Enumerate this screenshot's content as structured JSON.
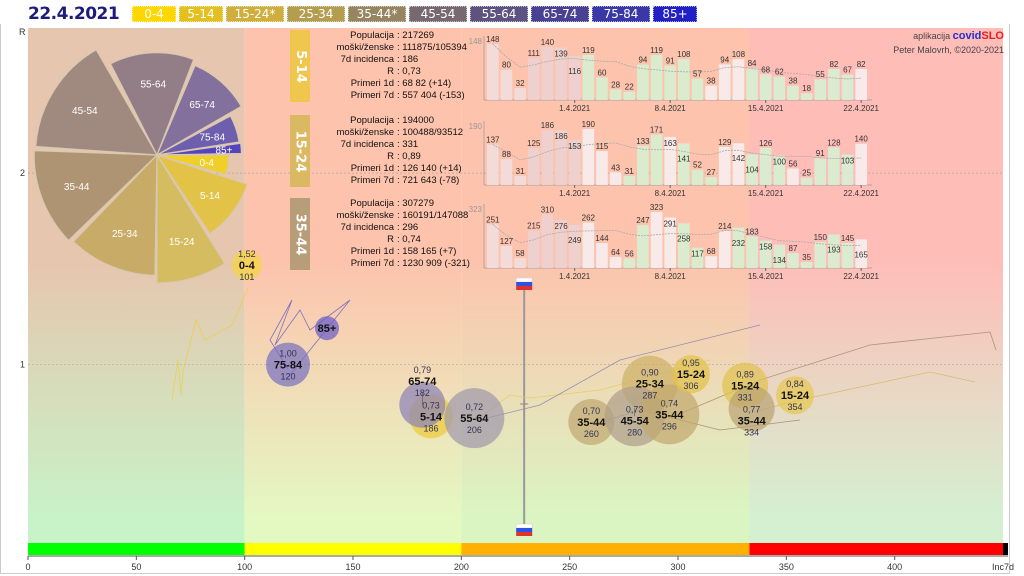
{
  "header": {
    "date": "22.4.2021"
  },
  "legend": [
    {
      "label": "0-4",
      "color": "#ffd700"
    },
    {
      "label": "5-14",
      "color": "#e3bf1f"
    },
    {
      "label": "15-24*",
      "color": "#cfae3e"
    },
    {
      "label": "25-34",
      "color": "#b59d4f"
    },
    {
      "label": "35-44*",
      "color": "#978460"
    },
    {
      "label": "45-54",
      "color": "#786970"
    },
    {
      "label": "55-64",
      "color": "#5c5380"
    },
    {
      "label": "65-74",
      "color": "#4a4192"
    },
    {
      "label": "75-84",
      "color": "#3a38a6"
    },
    {
      "label": "85+",
      "color": "#2020c4"
    }
  ],
  "credits": {
    "prefix": "aplikacija",
    "brand_a": "covid",
    "brand_b": "SLO",
    "author": "Peter Malovrh, ©2020-2021"
  },
  "panels": [
    {
      "group": "5-14",
      "color": "#efc64e",
      "rows": [
        {
          "k": "Populacija",
          "v": "217269"
        },
        {
          "k": "moški/ženske",
          "v": "111875/105394"
        },
        {
          "k": "7d incidenca",
          "v": "186"
        },
        {
          "k": "R",
          "v": "0,73"
        },
        {
          "k": "Primeri 1d",
          "v": "68 82 (+14)"
        },
        {
          "k": "Primeri 7d",
          "v": "557 404 (-153)"
        }
      ],
      "max_label": "148",
      "values": [
        148,
        80,
        32,
        111,
        140,
        139,
        116,
        119,
        60,
        28,
        22,
        94,
        119,
        91,
        108,
        57,
        38,
        94,
        108,
        84,
        68,
        62,
        38,
        18,
        55,
        82,
        67,
        82
      ]
    },
    {
      "group": "15-24",
      "color": "#dbb862",
      "rows": [
        {
          "k": "Populacija",
          "v": "194000"
        },
        {
          "k": "moški/ženske",
          "v": "100488/93512"
        },
        {
          "k": "7d incidenca",
          "v": "331"
        },
        {
          "k": "R",
          "v": "0,89"
        },
        {
          "k": "Primeri 1d",
          "v": "126 140 (+14)"
        },
        {
          "k": "Primeri 7d",
          "v": "721 643 (-78)"
        }
      ],
      "max_label": "190",
      "values": [
        137,
        88,
        31,
        125,
        186,
        186,
        153,
        190,
        115,
        43,
        31,
        133,
        171,
        163,
        141,
        52,
        27,
        129,
        142,
        104,
        126,
        100,
        56,
        25,
        91,
        128,
        103,
        140
      ]
    },
    {
      "group": "35-44",
      "color": "#b89e78",
      "rows": [
        {
          "k": "Populacija",
          "v": "307279"
        },
        {
          "k": "moški/ženske",
          "v": "160191/147088"
        },
        {
          "k": "7d incidenca",
          "v": "296"
        },
        {
          "k": "R",
          "v": "0,74"
        },
        {
          "k": "Primeri 1d",
          "v": "158 165 (+7)"
        },
        {
          "k": "Primeri 7d",
          "v": "1230 909 (-321)"
        }
      ],
      "max_label": "323",
      "values": [
        251,
        127,
        58,
        215,
        310,
        276,
        249,
        262,
        144,
        64,
        56,
        247,
        323,
        291,
        258,
        117,
        68,
        214,
        232,
        183,
        158,
        134,
        87,
        35,
        150,
        193,
        145,
        165
      ]
    }
  ],
  "date_ticks": [
    {
      "label": "1.4.2021",
      "index": 6
    },
    {
      "label": "8.4.2021",
      "index": 13
    },
    {
      "label": "15.4.2021",
      "index": 20
    },
    {
      "label": "22.4.2021",
      "index": 27
    }
  ],
  "chart_data": {
    "type": "scatter",
    "title": "",
    "xlabel": "Inc7d",
    "ylabel": "R",
    "xlim": [
      0,
      450
    ],
    "ylim": [
      0,
      2.8
    ],
    "xticks": [
      0,
      50,
      100,
      150,
      200,
      250,
      300,
      350,
      400
    ],
    "yticks": [
      1,
      2
    ],
    "bands": [
      {
        "from": 0,
        "to": 100,
        "color": "#00ff00"
      },
      {
        "from": 100,
        "to": 200,
        "color": "#ffff00"
      },
      {
        "from": 200,
        "to": 333,
        "color": "#ffb000"
      },
      {
        "from": 333,
        "to": 450,
        "color": "#ff0000"
      }
    ],
    "national_marker_inc7d": 229,
    "bubbles": [
      {
        "group": "0-4",
        "r": "1,52",
        "inc": "101",
        "R": 1.52,
        "x": 101,
        "color": "#f5d640"
      },
      {
        "group": "85+",
        "r": "",
        "inc": "",
        "R": 1.19,
        "x": 138,
        "color": "#6a5ec8"
      },
      {
        "group": "75-84",
        "r": "1,00",
        "inc": "120",
        "R": 1.0,
        "x": 120,
        "color": "#7a72c0"
      },
      {
        "group": "5-14",
        "r": "0,73",
        "inc": "186",
        "R": 0.73,
        "x": 186,
        "color": "#eccc3c"
      },
      {
        "group": "65-74",
        "r": "0,79",
        "inc": "182",
        "R": 0.79,
        "x": 182,
        "color": "#8d82b8"
      },
      {
        "group": "55-64",
        "r": "0,72",
        "inc": "206",
        "R": 0.72,
        "x": 206,
        "color": "#a198ac"
      },
      {
        "group": "35-44",
        "r": "0,70",
        "inc": "260",
        "R": 0.7,
        "x": 260,
        "color": "#c0a872"
      },
      {
        "group": "25-34",
        "r": "0,90",
        "inc": "287",
        "R": 0.9,
        "x": 287,
        "color": "#cdb268"
      },
      {
        "group": "45-54",
        "r": "0,73",
        "inc": "280",
        "R": 0.73,
        "x": 280,
        "color": "#ae9f8c"
      },
      {
        "group": "35-44",
        "r": "0,74",
        "inc": "296",
        "R": 0.74,
        "x": 296,
        "color": "#c2a86e"
      },
      {
        "group": "15-24",
        "r": "0,95",
        "inc": "306",
        "R": 0.95,
        "x": 306,
        "color": "#e2c24a"
      },
      {
        "group": "15-24",
        "r": "0,89",
        "inc": "331",
        "R": 0.89,
        "x": 331,
        "color": "#e0c250"
      },
      {
        "group": "35-44",
        "r": "0,77",
        "inc": "334",
        "R": 0.77,
        "x": 334,
        "color": "#bba474"
      },
      {
        "group": "15-24",
        "r": "0,84",
        "inc": "354",
        "R": 0.84,
        "x": 354,
        "color": "#e6c850"
      }
    ],
    "pie": [
      {
        "label": "0-4",
        "start": 0,
        "end": 16,
        "mag": 0.56,
        "color": "#f0cf2a"
      },
      {
        "label": "5-14",
        "start": 18,
        "end": 56,
        "mag": 0.74,
        "color": "#e3c347"
      },
      {
        "label": "15-24",
        "start": 58,
        "end": 90,
        "mag": 1.0,
        "color": "#d6bc60"
      },
      {
        "label": "25-34",
        "start": 91,
        "end": 134,
        "mag": 0.94,
        "color": "#c7ab66"
      },
      {
        "label": "35-44",
        "start": 136,
        "end": 182,
        "mag": 0.96,
        "color": "#ae9472"
      },
      {
        "label": "45-54",
        "start": 184,
        "end": 240,
        "mag": 0.95,
        "color": "#a08a80"
      },
      {
        "label": "55-64",
        "start": 243,
        "end": 291,
        "mag": 0.8,
        "color": "#937e88"
      },
      {
        "label": "65-74",
        "start": 293,
        "end": 330,
        "mag": 0.76,
        "color": "#84709c"
      },
      {
        "label": "75-84",
        "start": 332,
        "end": 351,
        "mag": 0.65,
        "color": "#6e5eae"
      },
      {
        "label": "85+",
        "start": 352,
        "end": 359,
        "mag": 0.66,
        "color": "#5544bb"
      }
    ]
  }
}
